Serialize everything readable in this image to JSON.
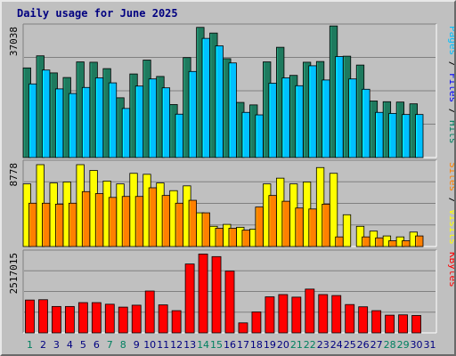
{
  "title": "Daily usage for June 2025",
  "chart_data": [
    {
      "type": "bar",
      "panel": "pages-files-hits",
      "y_max_label": "37038",
      "ylim": [
        0,
        37038
      ],
      "grid": true,
      "right_label": [
        {
          "text": "Pages",
          "color": "#00c0ff"
        },
        {
          "text": " / ",
          "color": "#000000"
        },
        {
          "text": "Files",
          "color": "#0000ff"
        },
        {
          "text": " / ",
          "color": "#000000"
        },
        {
          "text": "Hits",
          "color": "#008060"
        }
      ],
      "categories": [
        "1",
        "2",
        "3",
        "4",
        "5",
        "6",
        "7",
        "8",
        "9",
        "10",
        "11",
        "12",
        "13",
        "14",
        "15",
        "16",
        "17",
        "18",
        "19",
        "20",
        "21",
        "22",
        "23",
        "24",
        "25",
        "26",
        "27",
        "28",
        "29",
        "30",
        "31"
      ],
      "series": [
        {
          "name": "Hits",
          "color": "#1e7a5e",
          "values": [
            25200,
            28600,
            23800,
            22500,
            26900,
            26800,
            25000,
            16800,
            23500,
            27400,
            22800,
            14900,
            28100,
            36600,
            35000,
            27800,
            15500,
            14800,
            26900,
            31000,
            23100,
            26800,
            27000,
            37000,
            28500,
            26000,
            15900,
            15700,
            15600,
            15100,
            null
          ]
        },
        {
          "name": "Pages",
          "color": "#00c0ff",
          "values": [
            20700,
            24600,
            19300,
            18000,
            19700,
            22400,
            21000,
            13800,
            20100,
            22100,
            19600,
            12200,
            24200,
            33500,
            31400,
            26600,
            12700,
            12000,
            20900,
            22400,
            20200,
            25800,
            21800,
            28400,
            22100,
            19200,
            12700,
            12400,
            12100,
            12100,
            null
          ]
        }
      ]
    },
    {
      "type": "bar",
      "panel": "sites-visits",
      "y_max_label": "8778",
      "ylim": [
        0,
        8778
      ],
      "grid": true,
      "right_label": [
        {
          "text": "Sites",
          "color": "#ff8000"
        },
        {
          "text": " / ",
          "color": "#000000"
        },
        {
          "text": "Visits",
          "color": "#ffff00"
        }
      ],
      "categories": [
        "1",
        "2",
        "3",
        "4",
        "5",
        "6",
        "7",
        "8",
        "9",
        "10",
        "11",
        "12",
        "13",
        "14",
        "15",
        "16",
        "17",
        "18",
        "19",
        "20",
        "21",
        "22",
        "23",
        "24",
        "25",
        "26",
        "27",
        "28",
        "29",
        "30",
        "31"
      ],
      "series": [
        {
          "name": "Visits",
          "color": "#ffff00",
          "values": [
            6500,
            8500,
            6600,
            6700,
            8500,
            7900,
            6800,
            6500,
            7600,
            7500,
            6600,
            5800,
            6300,
            3500,
            2100,
            2300,
            2000,
            1800,
            6500,
            7100,
            6500,
            6700,
            8200,
            7600,
            3300,
            2100,
            1600,
            1100,
            1000,
            1500,
            null
          ]
        },
        {
          "name": "Sites",
          "color": "#ff8000",
          "values": [
            4500,
            4500,
            4400,
            4500,
            5700,
            5500,
            5100,
            5200,
            5200,
            6100,
            5300,
            4500,
            4800,
            3500,
            1900,
            1900,
            1700,
            4100,
            5300,
            4700,
            4000,
            3900,
            4400,
            1000,
            null,
            1000,
            900,
            600,
            600,
            1100,
            null
          ]
        }
      ]
    },
    {
      "type": "bar",
      "panel": "kbytes",
      "y_max_label": "2517015",
      "ylim": [
        0,
        2517015
      ],
      "grid": true,
      "right_label": [
        {
          "text": "KBytes",
          "color": "#ff0000"
        }
      ],
      "categories": [
        "1",
        "2",
        "3",
        "4",
        "5",
        "6",
        "7",
        "8",
        "9",
        "10",
        "11",
        "12",
        "13",
        "14",
        "15",
        "16",
        "17",
        "18",
        "19",
        "20",
        "21",
        "22",
        "23",
        "24",
        "25",
        "26",
        "27",
        "28",
        "29",
        "30",
        "31"
      ],
      "series": [
        {
          "name": "KBytes",
          "color": "#ff0000",
          "values": [
            1020000,
            1030000,
            820000,
            820000,
            940000,
            940000,
            890000,
            800000,
            860000,
            1300000,
            870000,
            690000,
            2140000,
            2450000,
            2370000,
            1920000,
            310000,
            650000,
            1120000,
            1190000,
            1110000,
            1360000,
            1190000,
            1160000,
            880000,
            810000,
            690000,
            550000,
            560000,
            540000,
            null
          ]
        }
      ]
    }
  ],
  "x_labels": {
    "weekend_color": "#008060",
    "weekday_color": "#000080",
    "weekend_days": [
      "1",
      "7",
      "8",
      "14",
      "15",
      "21",
      "22",
      "28",
      "29"
    ]
  }
}
